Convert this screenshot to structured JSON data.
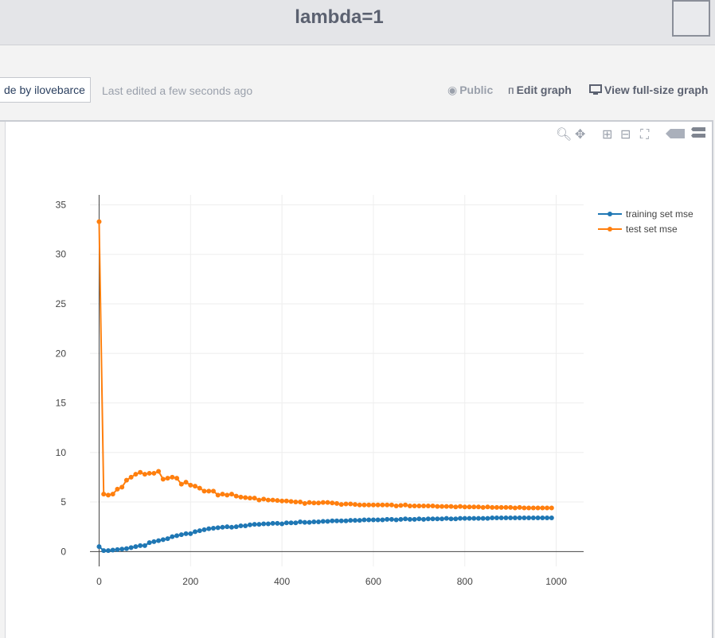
{
  "header": {
    "title": "lambda=1"
  },
  "info": {
    "made_by_prefix": "de by",
    "made_by_user": "ilovebarce",
    "last_edited": "Last edited a few seconds ago",
    "public_label": "Public",
    "edit_label": "Edit graph",
    "view_label": "View full-size graph"
  },
  "colors": {
    "training": "#1f77b4",
    "test": "#ff7f0e",
    "grid": "#eeeeee",
    "axis": "#444444"
  },
  "modebar_icons": [
    "zoom-icon",
    "pan-icon",
    "zoom-in-icon",
    "zoom-out-icon",
    "autoscale-icon",
    "hover-closest-icon",
    "hover-compare-icon"
  ],
  "chart_data": {
    "type": "line",
    "title": "lambda=1",
    "xlabel": "",
    "ylabel": "",
    "xlim": [
      -20,
      1060
    ],
    "ylim": [
      -1.5,
      36
    ],
    "xticks": [
      0,
      200,
      400,
      600,
      800,
      1000
    ],
    "yticks": [
      0,
      5,
      10,
      15,
      20,
      25,
      30,
      35
    ],
    "grid": true,
    "legend_position": "top-right",
    "x": [
      0,
      10,
      20,
      30,
      40,
      50,
      60,
      70,
      80,
      90,
      100,
      110,
      120,
      130,
      140,
      150,
      160,
      170,
      180,
      190,
      200,
      210,
      220,
      230,
      240,
      250,
      260,
      270,
      280,
      290,
      300,
      310,
      320,
      330,
      340,
      350,
      360,
      370,
      380,
      390,
      400,
      410,
      420,
      430,
      440,
      450,
      460,
      470,
      480,
      490,
      500,
      510,
      520,
      530,
      540,
      550,
      560,
      570,
      580,
      590,
      600,
      610,
      620,
      630,
      640,
      650,
      660,
      670,
      680,
      690,
      700,
      710,
      720,
      730,
      740,
      750,
      760,
      770,
      780,
      790,
      800,
      810,
      820,
      830,
      840,
      850,
      860,
      870,
      880,
      890,
      900,
      910,
      920,
      930,
      940,
      950,
      960,
      970,
      980,
      990
    ],
    "series": [
      {
        "name": "training set mse",
        "values": [
          0.5,
          0.1,
          0.1,
          0.15,
          0.2,
          0.25,
          0.3,
          0.4,
          0.5,
          0.6,
          0.6,
          0.9,
          1.0,
          1.1,
          1.2,
          1.3,
          1.5,
          1.6,
          1.7,
          1.8,
          1.8,
          2.0,
          2.1,
          2.2,
          2.3,
          2.35,
          2.4,
          2.45,
          2.5,
          2.45,
          2.5,
          2.6,
          2.6,
          2.7,
          2.75,
          2.75,
          2.8,
          2.8,
          2.85,
          2.85,
          2.8,
          2.9,
          2.9,
          2.9,
          3.0,
          2.95,
          2.95,
          3.0,
          3.0,
          3.05,
          3.05,
          3.1,
          3.1,
          3.1,
          3.1,
          3.15,
          3.15,
          3.15,
          3.2,
          3.2,
          3.2,
          3.2,
          3.2,
          3.25,
          3.25,
          3.2,
          3.25,
          3.3,
          3.25,
          3.25,
          3.3,
          3.25,
          3.3,
          3.3,
          3.3,
          3.3,
          3.35,
          3.3,
          3.3,
          3.35,
          3.35,
          3.35,
          3.35,
          3.35,
          3.35,
          3.35,
          3.4,
          3.4,
          3.4,
          3.4,
          3.4,
          3.4,
          3.4,
          3.4,
          3.4,
          3.4,
          3.4,
          3.4,
          3.4,
          3.4
        ]
      },
      {
        "name": "test set mse",
        "values": [
          33.3,
          5.8,
          5.7,
          5.8,
          6.3,
          6.5,
          7.2,
          7.5,
          7.8,
          8.0,
          7.8,
          7.9,
          7.9,
          8.1,
          7.3,
          7.4,
          7.5,
          7.4,
          6.8,
          7.0,
          6.7,
          6.6,
          6.4,
          6.1,
          6.1,
          6.1,
          5.7,
          5.8,
          5.7,
          5.8,
          5.6,
          5.5,
          5.45,
          5.4,
          5.4,
          5.2,
          5.3,
          5.2,
          5.2,
          5.15,
          5.1,
          5.1,
          5.05,
          5.0,
          5.0,
          4.85,
          4.95,
          4.9,
          4.9,
          4.95,
          4.95,
          4.9,
          4.85,
          4.75,
          4.8,
          4.8,
          4.75,
          4.7,
          4.7,
          4.7,
          4.7,
          4.7,
          4.7,
          4.7,
          4.7,
          4.6,
          4.65,
          4.7,
          4.6,
          4.6,
          4.6,
          4.6,
          4.6,
          4.6,
          4.55,
          4.55,
          4.55,
          4.55,
          4.5,
          4.55,
          4.5,
          4.5,
          4.5,
          4.5,
          4.45,
          4.5,
          4.45,
          4.45,
          4.45,
          4.45,
          4.45,
          4.4,
          4.45,
          4.4,
          4.4,
          4.4,
          4.4,
          4.4,
          4.4,
          4.4
        ]
      }
    ]
  }
}
